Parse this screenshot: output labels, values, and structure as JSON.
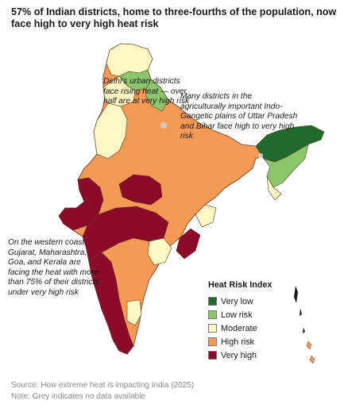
{
  "title": "57% of Indian districts, home to three-fourths of the population, now face high to very high heat risk",
  "annotations": {
    "delhi": "Delhi’s urban districts face rising heat — over half are at very high risk",
    "gangetic": "Many districts in the agriculturally important Indo-Gangetic plains of Uttar Pradesh and Bihar face high to very high risk",
    "west": "On the western coast, Gujarat, Maharashtra, Goa, and Kerala are facing the heat with more than 75% of their districts under very high risk"
  },
  "legend": {
    "title": "Heat Risk Index",
    "items": [
      {
        "label": "Very low",
        "color": "#1e6b2c"
      },
      {
        "label": "Low risk",
        "color": "#8cc66a"
      },
      {
        "label": "Moderate",
        "color": "#fdf7c4"
      },
      {
        "label": "High risk",
        "color": "#f59a55"
      },
      {
        "label": "Very high",
        "color": "#8b0a2a"
      }
    ]
  },
  "no_data_color": "#c9c9c9",
  "source": "Source: How extreme heat is impacting India (2025)",
  "note": "Note: Grey indicates no data available"
}
